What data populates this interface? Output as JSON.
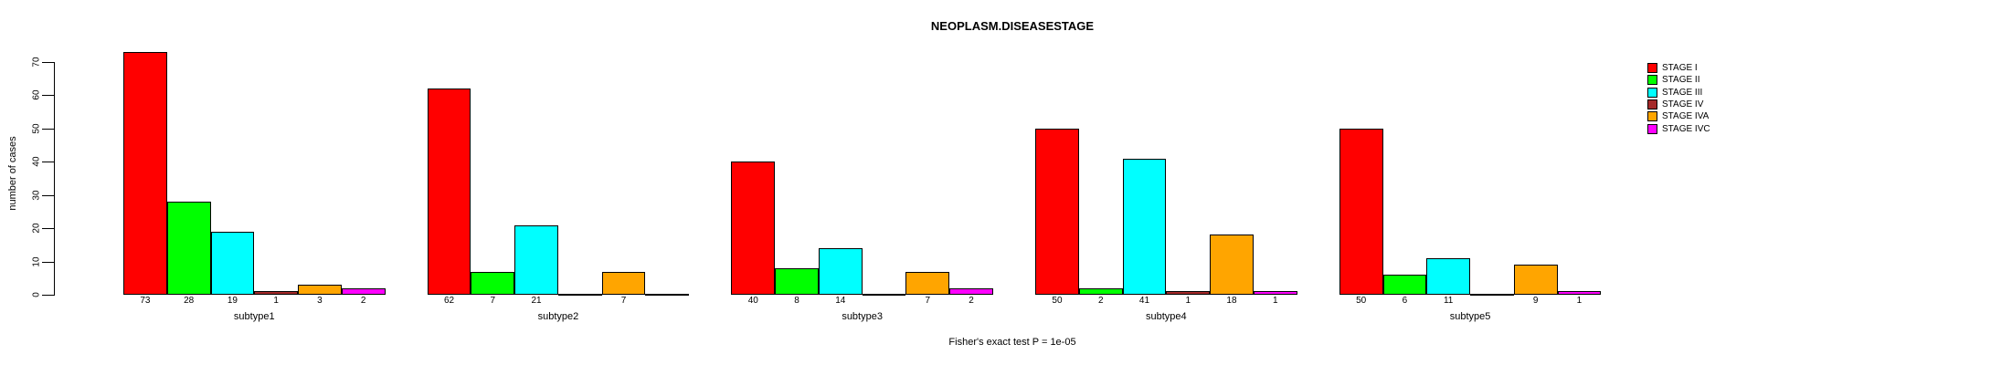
{
  "chart_data": {
    "type": "bar",
    "title": "NEOPLASM.DISEASESTAGE",
    "ylabel": "number of cases",
    "xlabel": "",
    "caption": "Fisher's exact test P = 1e-05",
    "categories": [
      "subtype1",
      "subtype2",
      "subtype3",
      "subtype4",
      "subtype5"
    ],
    "series": [
      {
        "name": "STAGE I",
        "color": "#FF0000",
        "values": [
          73,
          62,
          40,
          50,
          50
        ]
      },
      {
        "name": "STAGE II",
        "color": "#00FF00",
        "values": [
          28,
          7,
          8,
          2,
          6
        ]
      },
      {
        "name": "STAGE III",
        "color": "#00FFFF",
        "values": [
          19,
          21,
          14,
          41,
          11
        ]
      },
      {
        "name": "STAGE IV",
        "color": "#A52A2A",
        "values": [
          1,
          0,
          0,
          1,
          0
        ]
      },
      {
        "name": "STAGE IVA",
        "color": "#FFA500",
        "values": [
          3,
          7,
          7,
          18,
          9
        ]
      },
      {
        "name": "STAGE IVC",
        "color": "#FF00FF",
        "values": [
          2,
          0,
          2,
          1,
          1
        ]
      }
    ],
    "yticks": [
      0,
      10,
      20,
      30,
      40,
      50,
      60,
      70
    ],
    "ylim": [
      0,
      70
    ],
    "grid": false,
    "legend_position": "right",
    "bar_value_labels": "shown under each nonzero bar",
    "zero_bars": "drawn as flat black line at baseline"
  }
}
